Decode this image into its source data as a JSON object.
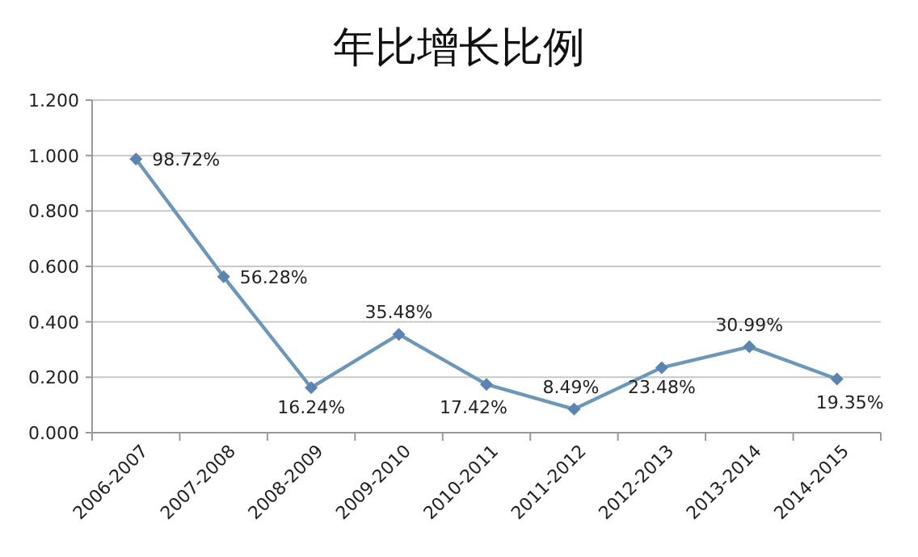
{
  "chart_data": {
    "type": "line",
    "title": "年比增长比例",
    "categories": [
      "2006-2007",
      "2007-2008",
      "2008-2009",
      "2009-2010",
      "2010-2011",
      "2011-2012",
      "2012-2013",
      "2013-2014",
      "2014-2015"
    ],
    "series": [
      {
        "color": "#6d97b8",
        "values": [
          0.9872,
          0.5628,
          0.1624,
          0.3548,
          0.1742,
          0.0849,
          0.2348,
          0.3099,
          0.1935
        ],
        "value_labels": [
          "98.72%",
          "56.28%",
          "16.24%",
          "35.48%",
          "17.42%",
          "8.49%",
          "23.48%",
          "30.99%",
          "19.35%"
        ]
      }
    ],
    "ylim": [
      0,
      1.2
    ],
    "yticks": [
      {
        "value": 0,
        "label": "0.000"
      },
      {
        "value": 0.2,
        "label": "0.200"
      },
      {
        "value": 0.4,
        "label": "0.400"
      },
      {
        "value": 0.6,
        "label": "0.600"
      },
      {
        "value": 0.8,
        "label": "0.800"
      },
      {
        "value": 1,
        "label": "1.000"
      },
      {
        "value": 1.2,
        "label": "1.200"
      }
    ],
    "grid": "y",
    "marker": "diamond",
    "line_style": "solid"
  }
}
